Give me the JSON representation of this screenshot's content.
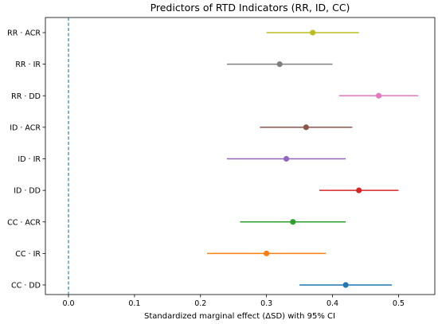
{
  "chart_data": {
    "type": "forest",
    "title": "Predictors of RTD Indicators (RR, ID, CC)",
    "xlabel": "Standardized marginal effect (ΔSD) with 95% CI",
    "ylabel": "",
    "xlim": [
      -0.035,
      0.555
    ],
    "xticks": [
      0.0,
      0.1,
      0.2,
      0.3,
      0.4,
      0.5
    ],
    "xtick_labels": [
      "0.0",
      "0.1",
      "0.2",
      "0.3",
      "0.4",
      "0.5"
    ],
    "reference_line": {
      "x": 0.0,
      "style": "dashed",
      "color": "#1f77b4"
    },
    "grid": false,
    "rows": [
      {
        "label": "RR · ACR",
        "estimate": 0.37,
        "ci": [
          0.3,
          0.44
        ],
        "color": "#bcbd22"
      },
      {
        "label": "RR · IR",
        "estimate": 0.32,
        "ci": [
          0.24,
          0.4
        ],
        "color": "#7f7f7f"
      },
      {
        "label": "RR · DD",
        "estimate": 0.47,
        "ci": [
          0.41,
          0.53
        ],
        "color": "#e377c2"
      },
      {
        "label": "ID · ACR",
        "estimate": 0.36,
        "ci": [
          0.29,
          0.43
        ],
        "color": "#8c564b"
      },
      {
        "label": "ID · IR",
        "estimate": 0.33,
        "ci": [
          0.24,
          0.42
        ],
        "color": "#9467bd"
      },
      {
        "label": "ID · DD",
        "estimate": 0.44,
        "ci": [
          0.38,
          0.5
        ],
        "color": "#d62728"
      },
      {
        "label": "CC · ACR",
        "estimate": 0.34,
        "ci": [
          0.26,
          0.42
        ],
        "color": "#2ca02c"
      },
      {
        "label": "CC · IR",
        "estimate": 0.3,
        "ci": [
          0.21,
          0.39
        ],
        "color": "#ff7f0e"
      },
      {
        "label": "CC · DD",
        "estimate": 0.42,
        "ci": [
          0.35,
          0.49
        ],
        "color": "#1f77b4"
      }
    ]
  }
}
